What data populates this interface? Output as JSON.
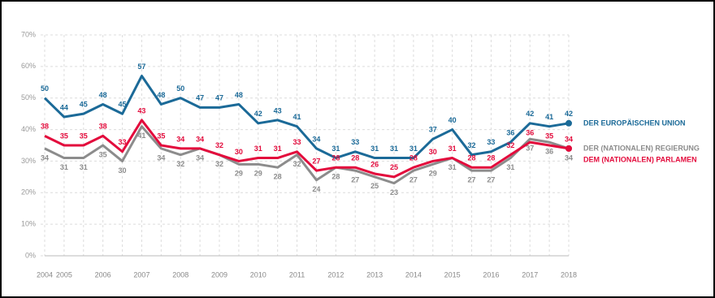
{
  "chart_data": {
    "type": "line",
    "categories": [
      "2004",
      "2005",
      null,
      "2006",
      null,
      "2007",
      null,
      "2008",
      null,
      "2009",
      null,
      "2010",
      null,
      "2011",
      null,
      "2012",
      null,
      "2013",
      null,
      "2014",
      null,
      "2015",
      null,
      "2016",
      null,
      "2017",
      null,
      "2018"
    ],
    "series": [
      {
        "name": "DER EUROPÄISCHEN UNION",
        "color": "#1b6a98",
        "values": [
          50,
          44,
          45,
          48,
          45,
          57,
          48,
          50,
          47,
          47,
          48,
          42,
          43,
          41,
          34,
          31,
          33,
          31,
          31,
          31,
          37,
          40,
          32,
          33,
          36,
          42,
          41,
          42
        ]
      },
      {
        "name": "DER (NATIONALEN) REGIERUNG",
        "color": "#8c8c8c",
        "values": [
          34,
          31,
          31,
          35,
          30,
          41,
          34,
          32,
          34,
          32,
          29,
          29,
          28,
          32,
          24,
          28,
          27,
          25,
          23,
          27,
          29,
          31,
          27,
          27,
          31,
          37,
          36,
          34
        ]
      },
      {
        "name": "DEM (NATIONALEN) PARLAMEN",
        "color": "#e30b3c",
        "values": [
          38,
          35,
          35,
          38,
          33,
          43,
          35,
          34,
          34,
          32,
          30,
          31,
          31,
          33,
          27,
          28,
          28,
          26,
          25,
          28,
          30,
          31,
          28,
          28,
          32,
          36,
          35,
          34
        ]
      }
    ],
    "ylim": [
      0,
      70
    ],
    "yticks": [
      {
        "value": 0,
        "label": "0%"
      },
      {
        "value": 10,
        "label": "10%"
      },
      {
        "value": 20,
        "label": "20%"
      },
      {
        "value": 30,
        "label": "30%"
      },
      {
        "value": 40,
        "label": "40%"
      },
      {
        "value": 50,
        "label": "50%"
      },
      {
        "value": 60,
        "label": "60%"
      },
      {
        "value": 70,
        "label": "70%"
      }
    ],
    "grid": true
  }
}
